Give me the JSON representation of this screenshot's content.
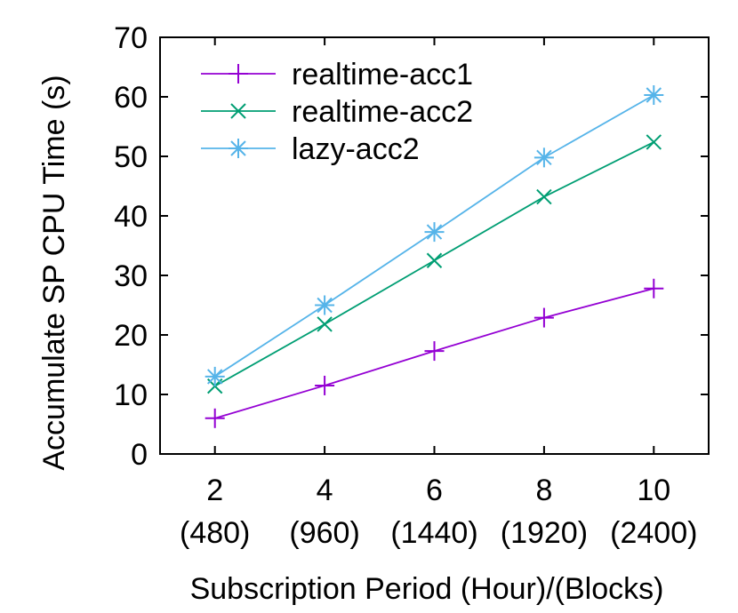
{
  "chart_data": {
    "type": "line",
    "title": "",
    "xlabel": "Subscription Period (Hour)/(Blocks)",
    "ylabel": "Accumulate SP CPU Time (s)",
    "ylim": [
      0,
      70
    ],
    "yticks": [
      "0",
      "10",
      "20",
      "30",
      "40",
      "50",
      "60",
      "70"
    ],
    "x": [
      2,
      4,
      6,
      8,
      10
    ],
    "x_tick_labels": [
      "2",
      "4",
      "6",
      "8",
      "10"
    ],
    "x_tick_sublabels": [
      "(480)",
      "(960)",
      "(1440)",
      "(1920)",
      "(2400)"
    ],
    "grid": false,
    "legend_position": "top-left",
    "series": [
      {
        "name": "realtime-acc1",
        "color": "#9400d3",
        "marker": "plus",
        "values": [
          6.0,
          11.5,
          17.3,
          22.9,
          27.8
        ]
      },
      {
        "name": "realtime-acc2",
        "color": "#009e73",
        "marker": "cross",
        "values": [
          11.4,
          21.8,
          32.5,
          43.2,
          52.4
        ]
      },
      {
        "name": "lazy-acc2",
        "color": "#56b4e9",
        "marker": "star",
        "values": [
          13.0,
          25.0,
          37.3,
          49.8,
          60.3
        ]
      }
    ]
  }
}
